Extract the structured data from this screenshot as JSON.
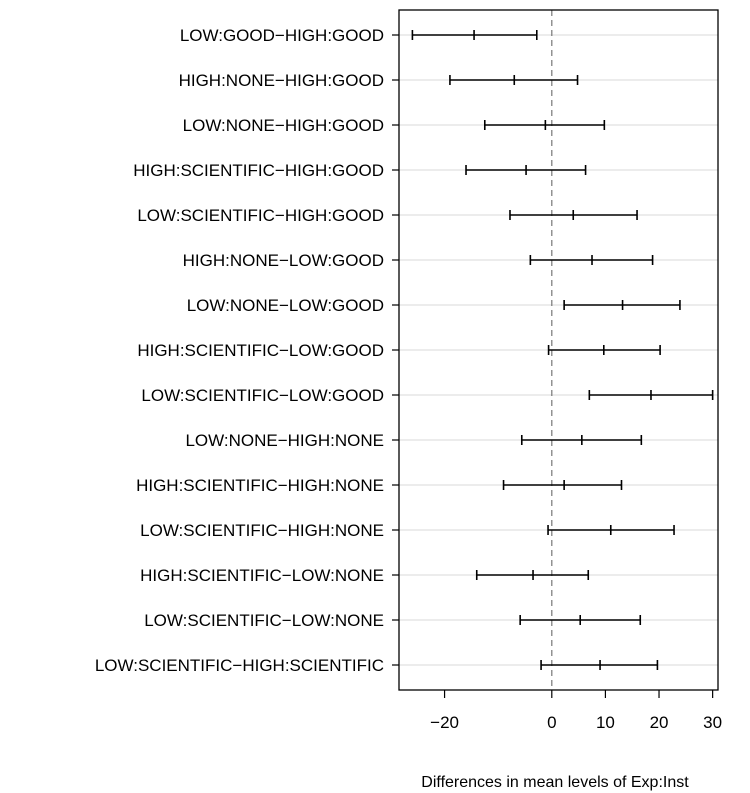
{
  "chart_data": {
    "type": "interval",
    "title": "",
    "xlabel": "Differences in mean levels of Exp:Inst",
    "ylabel": "",
    "xlim": [
      -28.5,
      31
    ],
    "xticks": [
      -20,
      0,
      10,
      20,
      30
    ],
    "xtick_labels": [
      "−20",
      "0",
      "10",
      "20",
      "30"
    ],
    "reference_line": 0,
    "grid": "horizontal",
    "comparisons": [
      {
        "label": "LOW:GOOD−HIGH:GOOD",
        "lwr": -26.0,
        "diff": -14.5,
        "upr": -2.8
      },
      {
        "label": "HIGH:NONE−HIGH:GOOD",
        "lwr": -19.0,
        "diff": -7.0,
        "upr": 4.8
      },
      {
        "label": "LOW:NONE−HIGH:GOOD",
        "lwr": -12.5,
        "diff": -1.2,
        "upr": 9.8
      },
      {
        "label": "HIGH:SCIENTIFIC−HIGH:GOOD",
        "lwr": -16.0,
        "diff": -4.8,
        "upr": 6.3
      },
      {
        "label": "LOW:SCIENTIFIC−HIGH:GOOD",
        "lwr": -7.8,
        "diff": 4.0,
        "upr": 15.9
      },
      {
        "label": "HIGH:NONE−LOW:GOOD",
        "lwr": -4.0,
        "diff": 7.5,
        "upr": 18.8
      },
      {
        "label": "LOW:NONE−LOW:GOOD",
        "lwr": 2.3,
        "diff": 13.2,
        "upr": 23.9
      },
      {
        "label": "HIGH:SCIENTIFIC−LOW:GOOD",
        "lwr": -0.6,
        "diff": 9.7,
        "upr": 20.2
      },
      {
        "label": "LOW:SCIENTIFIC−LOW:GOOD",
        "lwr": 7.0,
        "diff": 18.5,
        "upr": 30.0
      },
      {
        "label": "LOW:NONE−HIGH:NONE",
        "lwr": -5.6,
        "diff": 5.6,
        "upr": 16.7
      },
      {
        "label": "HIGH:SCIENTIFIC−HIGH:NONE",
        "lwr": -9.0,
        "diff": 2.3,
        "upr": 13.0
      },
      {
        "label": "LOW:SCIENTIFIC−HIGH:NONE",
        "lwr": -0.7,
        "diff": 11.0,
        "upr": 22.8
      },
      {
        "label": "HIGH:SCIENTIFIC−LOW:NONE",
        "lwr": -14.0,
        "diff": -3.5,
        "upr": 6.8
      },
      {
        "label": "LOW:SCIENTIFIC−LOW:NONE",
        "lwr": -5.9,
        "diff": 5.3,
        "upr": 16.5
      },
      {
        "label": "LOW:SCIENTIFIC−HIGH:SCIENTIFIC",
        "lwr": -2.0,
        "diff": 9.0,
        "upr": 19.7
      }
    ]
  }
}
